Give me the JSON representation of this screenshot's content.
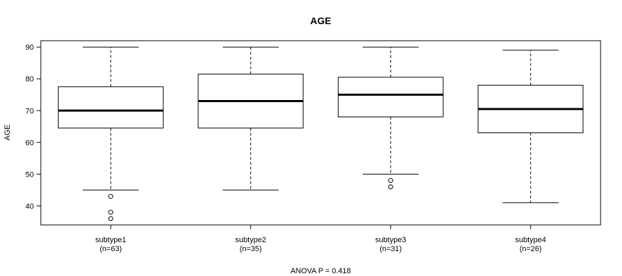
{
  "chart_data": {
    "type": "boxplot",
    "title": "AGE",
    "ylabel": "AGE",
    "xlabel": "",
    "footer": "ANOVA P = 0.418",
    "ylim": [
      34,
      92
    ],
    "yticks": [
      40,
      50,
      60,
      70,
      80,
      90
    ],
    "grid": false,
    "categories": [
      {
        "name": "subtype1",
        "n_label": "(n=63)"
      },
      {
        "name": "subtype2",
        "n_label": "(n=35)"
      },
      {
        "name": "subtype3",
        "n_label": "(n=31)"
      },
      {
        "name": "subtype4",
        "n_label": "(n=26)"
      }
    ],
    "boxes": [
      {
        "whisker_low": 45,
        "q1": 64.5,
        "median": 70,
        "q3": 77.5,
        "whisker_high": 90,
        "outliers": [
          43,
          38,
          36
        ]
      },
      {
        "whisker_low": 45,
        "q1": 64.5,
        "median": 73,
        "q3": 81.5,
        "whisker_high": 90,
        "outliers": []
      },
      {
        "whisker_low": 50,
        "q1": 68,
        "median": 75,
        "q3": 80.5,
        "whisker_high": 90,
        "outliers": [
          48,
          46
        ]
      },
      {
        "whisker_low": 41,
        "q1": 63,
        "median": 70.5,
        "q3": 78,
        "whisker_high": 89,
        "outliers": []
      }
    ]
  }
}
